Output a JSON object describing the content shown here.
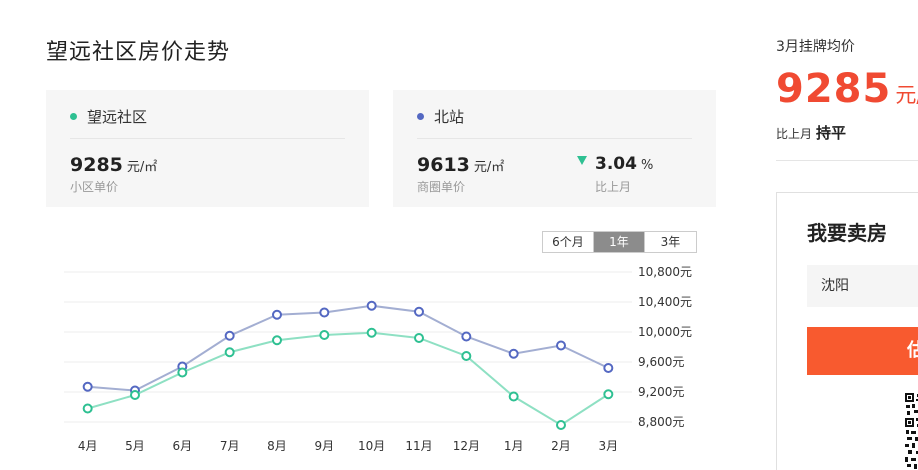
{
  "page": {
    "title": "望远社区房价走势"
  },
  "cards": {
    "community": {
      "name": "望远社区",
      "dot_color": "#2ec092",
      "price": "9285",
      "unit": "元/㎡",
      "sub": "小区单价"
    },
    "district": {
      "name": "北站",
      "dot_color": "#5468c2",
      "price": "9613",
      "unit": "元/㎡",
      "sub": "商圈单价",
      "change": "3.04",
      "change_unit": "%",
      "change_sub": "比上月",
      "change_color": "#2ec092"
    }
  },
  "range_tabs": [
    {
      "label": "6个月",
      "active": false
    },
    {
      "label": "1年",
      "active": true
    },
    {
      "label": "3年",
      "active": false
    }
  ],
  "chart_data": {
    "type": "line",
    "categories": [
      "4月",
      "5月",
      "6月",
      "7月",
      "8月",
      "9月",
      "10月",
      "11月",
      "12月",
      "1月",
      "2月",
      "3月"
    ],
    "series": [
      {
        "color": "#a3aed2",
        "marker": "#5468c2",
        "values": [
          9270,
          9220,
          9540,
          9950,
          10230,
          10260,
          10350,
          10270,
          9940,
          9710,
          9820,
          9520
        ]
      },
      {
        "color": "#8ee0c3",
        "marker": "#2ec092",
        "values": [
          8980,
          9160,
          9460,
          9730,
          9890,
          9960,
          9990,
          9920,
          9680,
          9140,
          8760,
          9170
        ]
      }
    ],
    "yticks": [
      "10,800元",
      "10,400元",
      "10,000元",
      "9,600元",
      "9,200元",
      "8,800元"
    ],
    "ylim": [
      8800,
      10800
    ],
    "grid": true
  },
  "sidebar": {
    "label": "3月挂牌均价",
    "price": "9285",
    "unit": "元/㎡",
    "compare_label": "比上月",
    "compare_value": "持平",
    "price_color": "#f04a32"
  },
  "sell": {
    "title": "我要卖房",
    "city": "沈阳",
    "button_label": "估",
    "button_color": "#f85a2f"
  }
}
